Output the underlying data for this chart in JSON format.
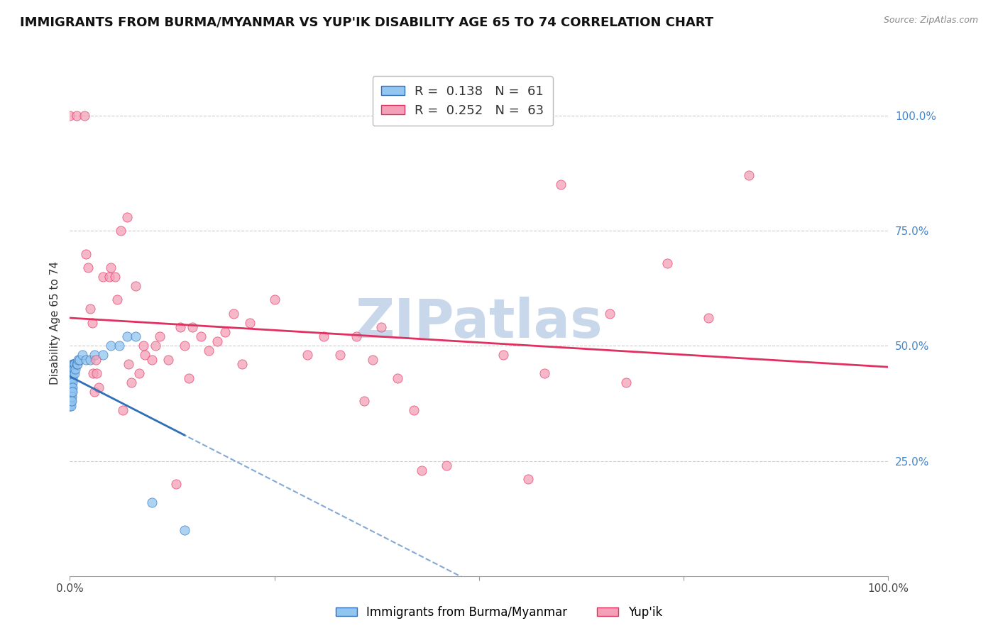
{
  "title": "IMMIGRANTS FROM BURMA/MYANMAR VS YUP'IK DISABILITY AGE 65 TO 74 CORRELATION CHART",
  "source": "Source: ZipAtlas.com",
  "ylabel": "Disability Age 65 to 74",
  "y_tick_labels": [
    "100.0%",
    "75.0%",
    "50.0%",
    "25.0%"
  ],
  "y_tick_positions": [
    1.0,
    0.75,
    0.5,
    0.25
  ],
  "legend_blue_r": "0.138",
  "legend_blue_n": "61",
  "legend_pink_r": "0.252",
  "legend_pink_n": "63",
  "legend_blue_label": "Immigrants from Burma/Myanmar",
  "legend_pink_label": "Yup'ik",
  "watermark": "ZIPatlas",
  "blue_color": "#92c5f0",
  "pink_color": "#f4a0b8",
  "blue_line_color": "#3070b8",
  "pink_line_color": "#e03060",
  "blue_scatter": [
    [
      0.0,
      0.44
    ],
    [
      0.0,
      0.44
    ],
    [
      0.0,
      0.43
    ],
    [
      0.0,
      0.43
    ],
    [
      0.0,
      0.42
    ],
    [
      0.0,
      0.42
    ],
    [
      0.0,
      0.41
    ],
    [
      0.0,
      0.41
    ],
    [
      0.0,
      0.4
    ],
    [
      0.0,
      0.4
    ],
    [
      0.0,
      0.39
    ],
    [
      0.0,
      0.39
    ],
    [
      0.0,
      0.38
    ],
    [
      0.0,
      0.38
    ],
    [
      0.0,
      0.37
    ],
    [
      0.0,
      0.37
    ],
    [
      0.001,
      0.44
    ],
    [
      0.001,
      0.43
    ],
    [
      0.001,
      0.42
    ],
    [
      0.001,
      0.41
    ],
    [
      0.001,
      0.4
    ],
    [
      0.001,
      0.39
    ],
    [
      0.001,
      0.38
    ],
    [
      0.001,
      0.37
    ],
    [
      0.002,
      0.45
    ],
    [
      0.002,
      0.44
    ],
    [
      0.002,
      0.43
    ],
    [
      0.002,
      0.42
    ],
    [
      0.002,
      0.41
    ],
    [
      0.002,
      0.4
    ],
    [
      0.002,
      0.39
    ],
    [
      0.002,
      0.38
    ],
    [
      0.003,
      0.46
    ],
    [
      0.003,
      0.45
    ],
    [
      0.003,
      0.43
    ],
    [
      0.003,
      0.42
    ],
    [
      0.003,
      0.41
    ],
    [
      0.003,
      0.4
    ],
    [
      0.004,
      0.46
    ],
    [
      0.004,
      0.45
    ],
    [
      0.004,
      0.44
    ],
    [
      0.005,
      0.46
    ],
    [
      0.005,
      0.45
    ],
    [
      0.006,
      0.46
    ],
    [
      0.006,
      0.44
    ],
    [
      0.007,
      0.45
    ],
    [
      0.008,
      0.46
    ],
    [
      0.009,
      0.46
    ],
    [
      0.01,
      0.47
    ],
    [
      0.012,
      0.47
    ],
    [
      0.015,
      0.48
    ],
    [
      0.02,
      0.47
    ],
    [
      0.025,
      0.47
    ],
    [
      0.03,
      0.48
    ],
    [
      0.04,
      0.48
    ],
    [
      0.05,
      0.5
    ],
    [
      0.06,
      0.5
    ],
    [
      0.07,
      0.52
    ],
    [
      0.08,
      0.52
    ],
    [
      0.1,
      0.16
    ],
    [
      0.14,
      0.1
    ]
  ],
  "pink_scatter": [
    [
      0.0,
      1.0
    ],
    [
      0.008,
      1.0
    ],
    [
      0.018,
      1.0
    ],
    [
      0.02,
      0.7
    ],
    [
      0.022,
      0.67
    ],
    [
      0.025,
      0.58
    ],
    [
      0.027,
      0.55
    ],
    [
      0.028,
      0.44
    ],
    [
      0.03,
      0.4
    ],
    [
      0.032,
      0.47
    ],
    [
      0.033,
      0.44
    ],
    [
      0.035,
      0.41
    ],
    [
      0.04,
      0.65
    ],
    [
      0.048,
      0.65
    ],
    [
      0.05,
      0.67
    ],
    [
      0.055,
      0.65
    ],
    [
      0.058,
      0.6
    ],
    [
      0.062,
      0.75
    ],
    [
      0.065,
      0.36
    ],
    [
      0.07,
      0.78
    ],
    [
      0.072,
      0.46
    ],
    [
      0.075,
      0.42
    ],
    [
      0.08,
      0.63
    ],
    [
      0.085,
      0.44
    ],
    [
      0.09,
      0.5
    ],
    [
      0.092,
      0.48
    ],
    [
      0.1,
      0.47
    ],
    [
      0.105,
      0.5
    ],
    [
      0.11,
      0.52
    ],
    [
      0.12,
      0.47
    ],
    [
      0.13,
      0.2
    ],
    [
      0.135,
      0.54
    ],
    [
      0.14,
      0.5
    ],
    [
      0.145,
      0.43
    ],
    [
      0.15,
      0.54
    ],
    [
      0.16,
      0.52
    ],
    [
      0.17,
      0.49
    ],
    [
      0.18,
      0.51
    ],
    [
      0.19,
      0.53
    ],
    [
      0.2,
      0.57
    ],
    [
      0.21,
      0.46
    ],
    [
      0.22,
      0.55
    ],
    [
      0.25,
      0.6
    ],
    [
      0.29,
      0.48
    ],
    [
      0.31,
      0.52
    ],
    [
      0.33,
      0.48
    ],
    [
      0.35,
      0.52
    ],
    [
      0.36,
      0.38
    ],
    [
      0.37,
      0.47
    ],
    [
      0.38,
      0.54
    ],
    [
      0.4,
      0.43
    ],
    [
      0.42,
      0.36
    ],
    [
      0.43,
      0.23
    ],
    [
      0.46,
      0.24
    ],
    [
      0.53,
      0.48
    ],
    [
      0.56,
      0.21
    ],
    [
      0.58,
      0.44
    ],
    [
      0.6,
      0.85
    ],
    [
      0.66,
      0.57
    ],
    [
      0.68,
      0.42
    ],
    [
      0.73,
      0.68
    ],
    [
      0.78,
      0.56
    ],
    [
      0.83,
      0.87
    ]
  ],
  "background_color": "#ffffff",
  "grid_color": "#cccccc",
  "title_fontsize": 13,
  "axis_label_fontsize": 11,
  "tick_fontsize": 11,
  "watermark_color": "#c8d8ea",
  "watermark_fontsize": 55,
  "xlim": [
    0.0,
    1.0
  ],
  "ylim": [
    0.0,
    1.1
  ]
}
